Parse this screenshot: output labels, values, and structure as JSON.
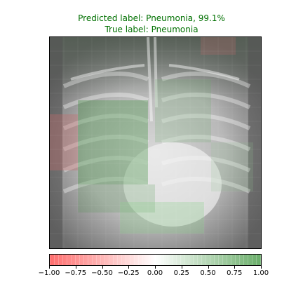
{
  "header": {
    "predicted_label": "Predicted label: Pneumonia, 99.1%",
    "true_label": "True label: Pneumonia",
    "text_color": "#007000"
  },
  "image": {
    "content": "chest x-ray with attribution heatmap overlay"
  },
  "colorbar": {
    "negative_color": "#ff6e6e",
    "neutral_color": "#ffffff",
    "positive_color": "#6aae6a",
    "range": [
      -1.0,
      1.0
    ],
    "ticks": [
      "−1.00",
      "−0.75",
      "−0.50",
      "−0.25",
      "0.00",
      "0.25",
      "0.50",
      "0.75",
      "1.00"
    ]
  }
}
